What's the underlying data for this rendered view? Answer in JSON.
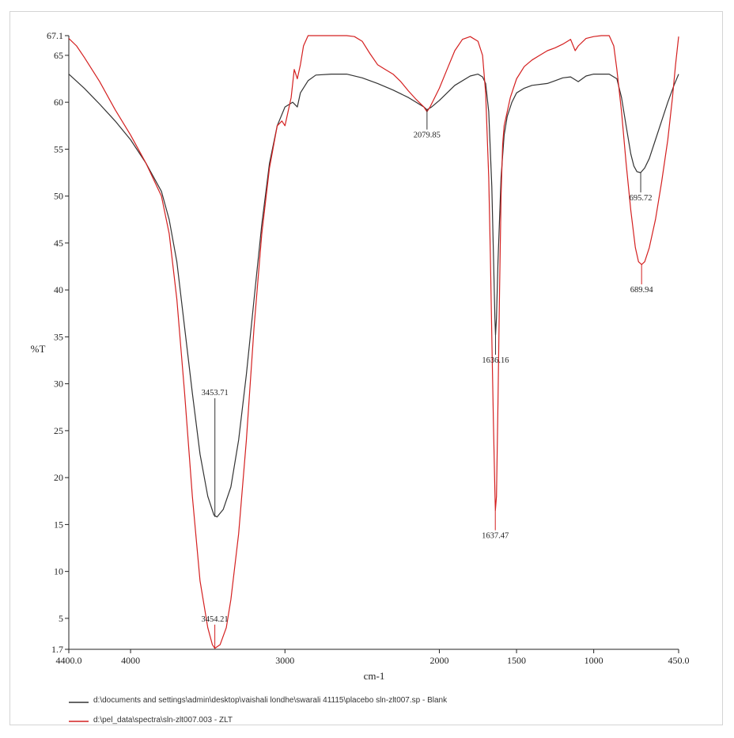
{
  "chart_data": {
    "type": "line",
    "title": "",
    "xlabel": "cm-1",
    "ylabel": "%T",
    "xlim": [
      4400.0,
      450.0
    ],
    "ylim": [
      1.7,
      67.1
    ],
    "x_reversed": true,
    "grid": false,
    "x_tick_labels": [
      {
        "value": 4400.0,
        "label": "4400.0"
      },
      {
        "value": 4000,
        "label": "4000"
      },
      {
        "value": 3000,
        "label": "3000"
      },
      {
        "value": 2000,
        "label": "2000"
      },
      {
        "value": 1500,
        "label": "1500"
      },
      {
        "value": 1000,
        "label": "1000"
      },
      {
        "value": 450.0,
        "label": "450.0"
      }
    ],
    "y_tick_labels": [
      {
        "value": 67.1,
        "label": "67.1"
      },
      {
        "value": 65,
        "label": "65"
      },
      {
        "value": 60,
        "label": "60"
      },
      {
        "value": 55,
        "label": "55"
      },
      {
        "value": 50,
        "label": "50"
      },
      {
        "value": 45,
        "label": "45"
      },
      {
        "value": 40,
        "label": "40"
      },
      {
        "value": 35,
        "label": "35"
      },
      {
        "value": 30,
        "label": "30"
      },
      {
        "value": 25,
        "label": "25"
      },
      {
        "value": 20,
        "label": "20"
      },
      {
        "value": 15,
        "label": "15"
      },
      {
        "value": 10,
        "label": "10"
      },
      {
        "value": 5,
        "label": "5"
      },
      {
        "value": 1.7,
        "label": "1.7"
      }
    ],
    "series": [
      {
        "name": "d:\\documents and settings\\admin\\desktop\\vaishali londhe\\swarali 41115\\placebo sln-zlt007.sp - Blank",
        "color": "#333333",
        "points": [
          [
            4400,
            63.0
          ],
          [
            4300,
            61.5
          ],
          [
            4200,
            59.8
          ],
          [
            4100,
            58.0
          ],
          [
            4000,
            56.0
          ],
          [
            3900,
            53.5
          ],
          [
            3800,
            50.5
          ],
          [
            3750,
            47.5
          ],
          [
            3700,
            43.0
          ],
          [
            3650,
            36.0
          ],
          [
            3600,
            29.0
          ],
          [
            3550,
            22.5
          ],
          [
            3500,
            18.0
          ],
          [
            3460,
            16.0
          ],
          [
            3440,
            15.8
          ],
          [
            3400,
            16.6
          ],
          [
            3350,
            19.0
          ],
          [
            3300,
            24.0
          ],
          [
            3250,
            31.0
          ],
          [
            3200,
            39.0
          ],
          [
            3150,
            47.0
          ],
          [
            3100,
            53.5
          ],
          [
            3050,
            57.5
          ],
          [
            3000,
            59.5
          ],
          [
            2950,
            60.0
          ],
          [
            2920,
            59.5
          ],
          [
            2900,
            61.0
          ],
          [
            2850,
            62.3
          ],
          [
            2800,
            62.9
          ],
          [
            2700,
            63.0
          ],
          [
            2600,
            63.0
          ],
          [
            2500,
            62.6
          ],
          [
            2400,
            62.0
          ],
          [
            2300,
            61.3
          ],
          [
            2200,
            60.5
          ],
          [
            2100,
            59.5
          ],
          [
            2080,
            59.2
          ],
          [
            2050,
            59.5
          ],
          [
            2000,
            60.2
          ],
          [
            1900,
            61.8
          ],
          [
            1800,
            62.8
          ],
          [
            1750,
            63.0
          ],
          [
            1720,
            62.7
          ],
          [
            1700,
            62.0
          ],
          [
            1680,
            59.0
          ],
          [
            1660,
            51.0
          ],
          [
            1650,
            44.0
          ],
          [
            1640,
            37.0
          ],
          [
            1636,
            35.2
          ],
          [
            1630,
            37.0
          ],
          [
            1620,
            43.0
          ],
          [
            1600,
            52.0
          ],
          [
            1580,
            56.5
          ],
          [
            1560,
            58.5
          ],
          [
            1530,
            60.0
          ],
          [
            1500,
            61.0
          ],
          [
            1450,
            61.5
          ],
          [
            1400,
            61.8
          ],
          [
            1300,
            62.0
          ],
          [
            1250,
            62.3
          ],
          [
            1200,
            62.6
          ],
          [
            1150,
            62.7
          ],
          [
            1100,
            62.2
          ],
          [
            1050,
            62.8
          ],
          [
            1000,
            63.0
          ],
          [
            900,
            63.0
          ],
          [
            850,
            62.5
          ],
          [
            820,
            60.5
          ],
          [
            790,
            57.5
          ],
          [
            760,
            54.5
          ],
          [
            740,
            53.2
          ],
          [
            720,
            52.6
          ],
          [
            696,
            52.5
          ],
          [
            670,
            53.0
          ],
          [
            640,
            54.0
          ],
          [
            600,
            56.0
          ],
          [
            560,
            58.0
          ],
          [
            520,
            60.0
          ],
          [
            480,
            61.8
          ],
          [
            450,
            63.0
          ]
        ]
      },
      {
        "name": "d:\\pel_data\\spectra\\sln-zlt007.003 - ZLT",
        "color": "#d42020",
        "points": [
          [
            4400,
            66.8
          ],
          [
            4350,
            66.0
          ],
          [
            4300,
            64.8
          ],
          [
            4200,
            62.2
          ],
          [
            4100,
            59.2
          ],
          [
            4000,
            56.5
          ],
          [
            3900,
            53.5
          ],
          [
            3800,
            50.0
          ],
          [
            3750,
            46.0
          ],
          [
            3700,
            39.0
          ],
          [
            3650,
            29.0
          ],
          [
            3600,
            18.0
          ],
          [
            3550,
            9.0
          ],
          [
            3500,
            4.0
          ],
          [
            3470,
            2.2
          ],
          [
            3454,
            1.8
          ],
          [
            3420,
            2.2
          ],
          [
            3380,
            4.0
          ],
          [
            3350,
            7.0
          ],
          [
            3300,
            14.0
          ],
          [
            3250,
            24.0
          ],
          [
            3200,
            36.0
          ],
          [
            3150,
            46.0
          ],
          [
            3100,
            53.0
          ],
          [
            3050,
            57.5
          ],
          [
            3020,
            58.0
          ],
          [
            3000,
            57.5
          ],
          [
            2980,
            59.0
          ],
          [
            2960,
            60.5
          ],
          [
            2940,
            63.5
          ],
          [
            2920,
            62.5
          ],
          [
            2900,
            64.0
          ],
          [
            2880,
            66.0
          ],
          [
            2850,
            67.1
          ],
          [
            2800,
            67.1
          ],
          [
            2700,
            67.1
          ],
          [
            2600,
            67.1
          ],
          [
            2550,
            67.0
          ],
          [
            2500,
            66.5
          ],
          [
            2450,
            65.2
          ],
          [
            2400,
            64.0
          ],
          [
            2350,
            63.5
          ],
          [
            2300,
            63.0
          ],
          [
            2250,
            62.2
          ],
          [
            2200,
            61.2
          ],
          [
            2150,
            60.3
          ],
          [
            2100,
            59.5
          ],
          [
            2080,
            59.0
          ],
          [
            2060,
            59.5
          ],
          [
            2000,
            61.5
          ],
          [
            1950,
            63.5
          ],
          [
            1900,
            65.5
          ],
          [
            1850,
            66.7
          ],
          [
            1800,
            67.0
          ],
          [
            1750,
            66.5
          ],
          [
            1720,
            65.0
          ],
          [
            1700,
            61.0
          ],
          [
            1680,
            52.0
          ],
          [
            1670,
            44.0
          ],
          [
            1660,
            35.0
          ],
          [
            1650,
            26.0
          ],
          [
            1640,
            18.5
          ],
          [
            1637,
            16.5
          ],
          [
            1630,
            18.0
          ],
          [
            1620,
            28.0
          ],
          [
            1610,
            40.0
          ],
          [
            1600,
            50.0
          ],
          [
            1590,
            55.5
          ],
          [
            1580,
            57.5
          ],
          [
            1560,
            59.0
          ],
          [
            1540,
            60.5
          ],
          [
            1500,
            62.5
          ],
          [
            1450,
            63.8
          ],
          [
            1400,
            64.5
          ],
          [
            1350,
            65.0
          ],
          [
            1300,
            65.5
          ],
          [
            1250,
            65.8
          ],
          [
            1200,
            66.2
          ],
          [
            1150,
            66.7
          ],
          [
            1120,
            65.5
          ],
          [
            1100,
            66.0
          ],
          [
            1050,
            66.8
          ],
          [
            1000,
            67.0
          ],
          [
            950,
            67.1
          ],
          [
            900,
            67.1
          ],
          [
            870,
            66.0
          ],
          [
            850,
            63.5
          ],
          [
            820,
            59.0
          ],
          [
            790,
            53.5
          ],
          [
            760,
            48.5
          ],
          [
            730,
            44.5
          ],
          [
            710,
            43.0
          ],
          [
            690,
            42.7
          ],
          [
            670,
            43.0
          ],
          [
            640,
            44.5
          ],
          [
            600,
            47.5
          ],
          [
            560,
            51.5
          ],
          [
            520,
            56.0
          ],
          [
            490,
            60.5
          ],
          [
            470,
            64.0
          ],
          [
            450,
            67.0
          ]
        ]
      }
    ],
    "annotations": [
      {
        "x": 2079.85,
        "y": 59.2,
        "label": "2079.85",
        "series": 0
      },
      {
        "x": 1636.16,
        "y": 35.2,
        "label": "1636.16",
        "series": 0
      },
      {
        "x": 695.72,
        "y": 52.5,
        "label": "695.72",
        "series": 0
      },
      {
        "x": 3453.71,
        "y": 15.8,
        "label": "3453.71",
        "series": 0
      },
      {
        "x": 1637.47,
        "y": 16.5,
        "label": "1637.47",
        "series": 1
      },
      {
        "x": 689.94,
        "y": 42.7,
        "label": "689.94",
        "series": 1
      },
      {
        "x": 3454.21,
        "y": 1.8,
        "label": "3454.21",
        "series": 1
      }
    ]
  }
}
